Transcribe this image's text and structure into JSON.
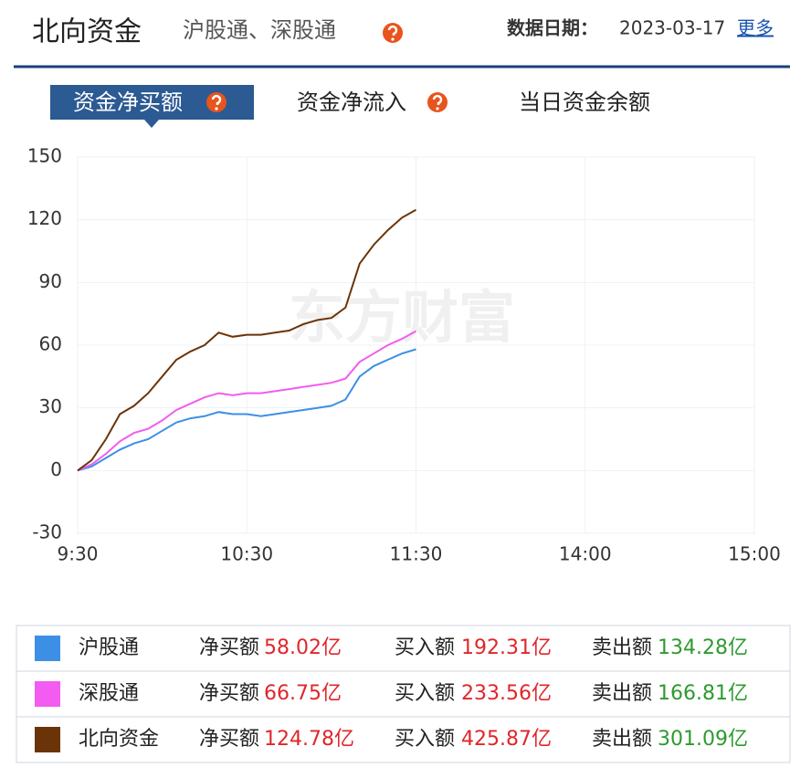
{
  "header": {
    "title": "北向资金",
    "subtitle": "沪股通、深股通",
    "date_label": "数据日期：",
    "date": "2023-03-17",
    "more": "更多"
  },
  "tabs": [
    "资金净买额",
    "资金净流入",
    "当日资金余额"
  ],
  "watermark": "东方财富",
  "chart_data": {
    "type": "line",
    "x": [
      0,
      5,
      10,
      15,
      20,
      25,
      30,
      35,
      40,
      45,
      50,
      55,
      60,
      65,
      70,
      75,
      80,
      85,
      90,
      95,
      100,
      105,
      110,
      115,
      120
    ],
    "xlim": [
      0,
      240
    ],
    "xticks": [
      {
        "value": 0,
        "label": "9:30"
      },
      {
        "value": 60,
        "label": "10:30"
      },
      {
        "value": 120,
        "label": "11:30"
      },
      {
        "value": 180,
        "label": "14:00"
      },
      {
        "value": 240,
        "label": "15:00"
      }
    ],
    "ylim": [
      -30,
      150
    ],
    "yticks": [
      -30,
      0,
      30,
      60,
      90,
      120,
      150
    ],
    "grid": true,
    "series": [
      {
        "name": "沪股通",
        "color": "#3d8fe6",
        "values": [
          0,
          2,
          6,
          10,
          13,
          15,
          19,
          23,
          25,
          26,
          28,
          27,
          27,
          26,
          27,
          28,
          29,
          30,
          31,
          34,
          45,
          50,
          53,
          56,
          58.02
        ]
      },
      {
        "name": "深股通",
        "color": "#f25cf0",
        "values": [
          0,
          3,
          8,
          14,
          18,
          20,
          24,
          29,
          32,
          35,
          37,
          36,
          37,
          37,
          38,
          39,
          40,
          41,
          42,
          44,
          52,
          56,
          60,
          63,
          66.75
        ]
      },
      {
        "name": "北向资金",
        "color": "#6b3408",
        "values": [
          0,
          5,
          15,
          27,
          31,
          37,
          45,
          53,
          57,
          60,
          66,
          64,
          65,
          65,
          66,
          67,
          70,
          72,
          73,
          78,
          99,
          108,
          115,
          121,
          124.78
        ]
      }
    ]
  },
  "summary": {
    "labels": [
      "净买额",
      "买入额",
      "卖出额"
    ],
    "rows": [
      [
        "58.02亿",
        "192.31亿",
        "134.28亿"
      ],
      [
        "66.75亿",
        "233.56亿",
        "166.81亿"
      ],
      [
        "124.78亿",
        "425.87亿",
        "301.09亿"
      ]
    ]
  }
}
